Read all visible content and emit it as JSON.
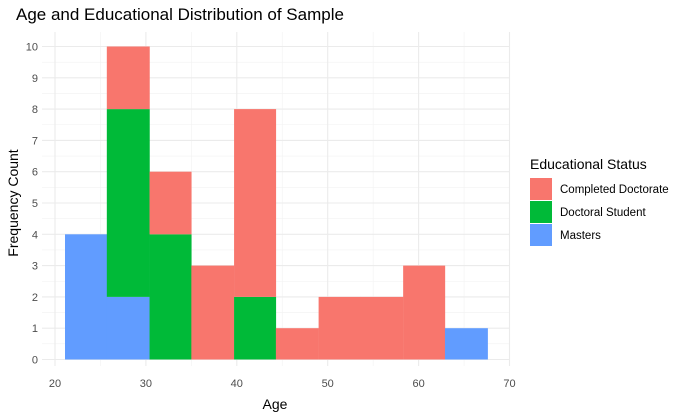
{
  "chart_data": {
    "type": "bar",
    "title": "Age and Educational Distribution of Sample",
    "xlabel": "Age",
    "ylabel": "Frequency Count",
    "xlim": [
      20,
      70
    ],
    "ylim": [
      0,
      10
    ],
    "x_ticks": [
      "20",
      "30",
      "40",
      "50",
      "60",
      "70"
    ],
    "y_ticks": [
      "0",
      "1",
      "2",
      "3",
      "4",
      "5",
      "6",
      "7",
      "8",
      "9",
      "10"
    ],
    "grid": true,
    "stacked": true,
    "legend": {
      "title": "Educational Status",
      "position": "right"
    },
    "bins": [
      [
        21.1,
        25.7
      ],
      [
        25.7,
        30.4
      ],
      [
        30.4,
        35.0
      ],
      [
        35.0,
        39.7
      ],
      [
        39.7,
        44.3
      ],
      [
        44.3,
        49.0
      ],
      [
        49.0,
        53.6
      ],
      [
        53.6,
        58.3
      ],
      [
        58.3,
        62.9
      ],
      [
        62.9,
        67.6
      ]
    ],
    "series": [
      {
        "name": "Completed Doctorate",
        "color": "#F8766D",
        "values": [
          0,
          2,
          2,
          3,
          6,
          1,
          2,
          2,
          3,
          0
        ]
      },
      {
        "name": "Doctoral Student",
        "color": "#00BA38",
        "values": [
          0,
          6,
          4,
          0,
          2,
          0,
          0,
          0,
          0,
          0
        ]
      },
      {
        "name": "Masters",
        "color": "#619CFF",
        "values": [
          4,
          2,
          0,
          0,
          0,
          0,
          0,
          0,
          0,
          1
        ]
      }
    ]
  }
}
